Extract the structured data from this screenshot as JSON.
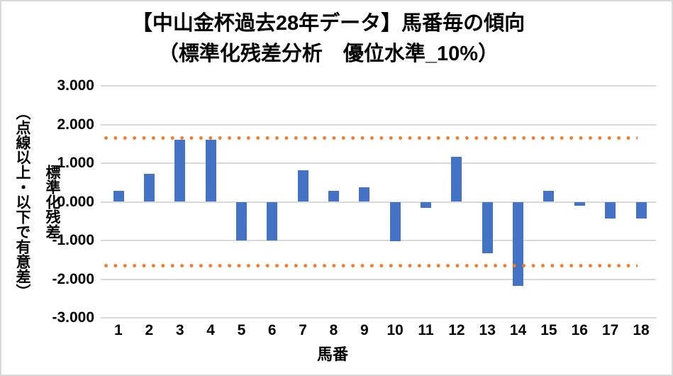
{
  "chart_data": {
    "type": "bar",
    "title_line1": "【中山金杯過去28年データ】馬番毎の傾向",
    "title_line2": "（標準化残差分析　優位水準_10%）",
    "xlabel": "馬番",
    "ylabel_main": "標準化残差",
    "ylabel_sub": "（点線以上・以下で有意差）",
    "categories": [
      "1",
      "2",
      "3",
      "4",
      "5",
      "6",
      "7",
      "8",
      "9",
      "10",
      "11",
      "12",
      "13",
      "14",
      "15",
      "16",
      "17",
      "18"
    ],
    "values": [
      0.28,
      0.73,
      1.6,
      1.6,
      -1.0,
      -1.0,
      0.82,
      0.28,
      0.37,
      -1.01,
      -0.15,
      1.16,
      -1.33,
      -2.18,
      0.28,
      -0.1,
      -0.43,
      -0.43
    ],
    "ylim": [
      -3,
      3
    ],
    "y_ticks": [
      {
        "label": "3.000",
        "value": 3
      },
      {
        "label": "2.000",
        "value": 2
      },
      {
        "label": "1.000",
        "value": 1
      },
      {
        "label": "0.000",
        "value": 0
      },
      {
        "label": "-1.000",
        "value": -1
      },
      {
        "label": "-2.000",
        "value": -2
      },
      {
        "label": "-3.000",
        "value": -3
      }
    ],
    "significance_lines": {
      "upper": 1.645,
      "lower": -1.645,
      "style": "dotted"
    },
    "legend": "none",
    "grid": "horizontal",
    "colors": {
      "bar": "#4472C4",
      "significance": "#ED7D31",
      "gridline": "#D9D9D9",
      "text": "#000000",
      "border": "#D9D9D9"
    }
  }
}
